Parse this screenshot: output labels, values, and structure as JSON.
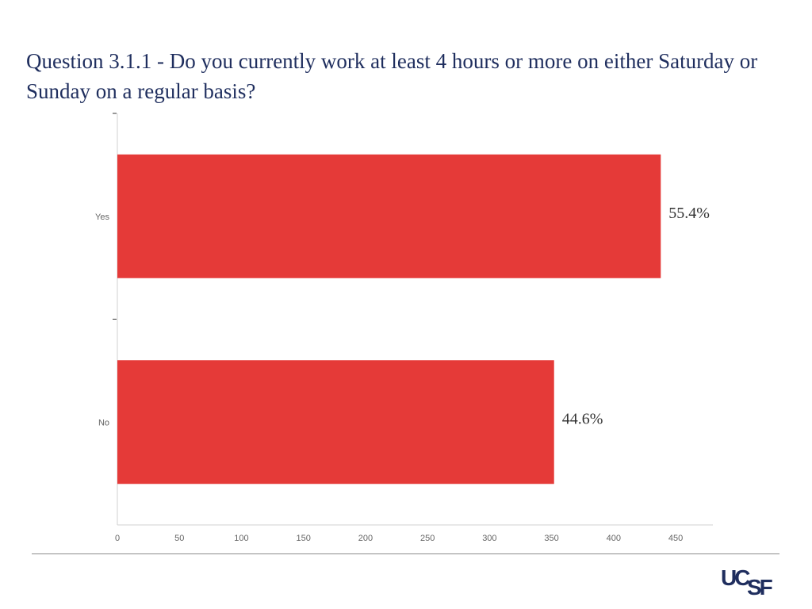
{
  "slide": {
    "title": "Question 3.1.1 - Do you currently work at least 4 hours or more on either Saturday or Sunday on a regular basis?",
    "title_color": "#1f2e5e"
  },
  "logo": {
    "text": "UCSF",
    "part1": "UC",
    "part2": "SF",
    "color": "#1f2e5e"
  },
  "chart_data": {
    "type": "bar",
    "orientation": "horizontal",
    "categories": [
      "Yes",
      "No"
    ],
    "values": [
      438,
      352
    ],
    "data_labels": [
      "55.4%",
      "44.6%"
    ],
    "xticks": [
      "0",
      "50",
      "100",
      "150",
      "200",
      "250",
      "300",
      "350",
      "400",
      "450"
    ],
    "xlim": [
      0,
      480
    ],
    "title": "",
    "xlabel": "",
    "ylabel": "",
    "grid": false,
    "bar_color": "#e53a38"
  }
}
